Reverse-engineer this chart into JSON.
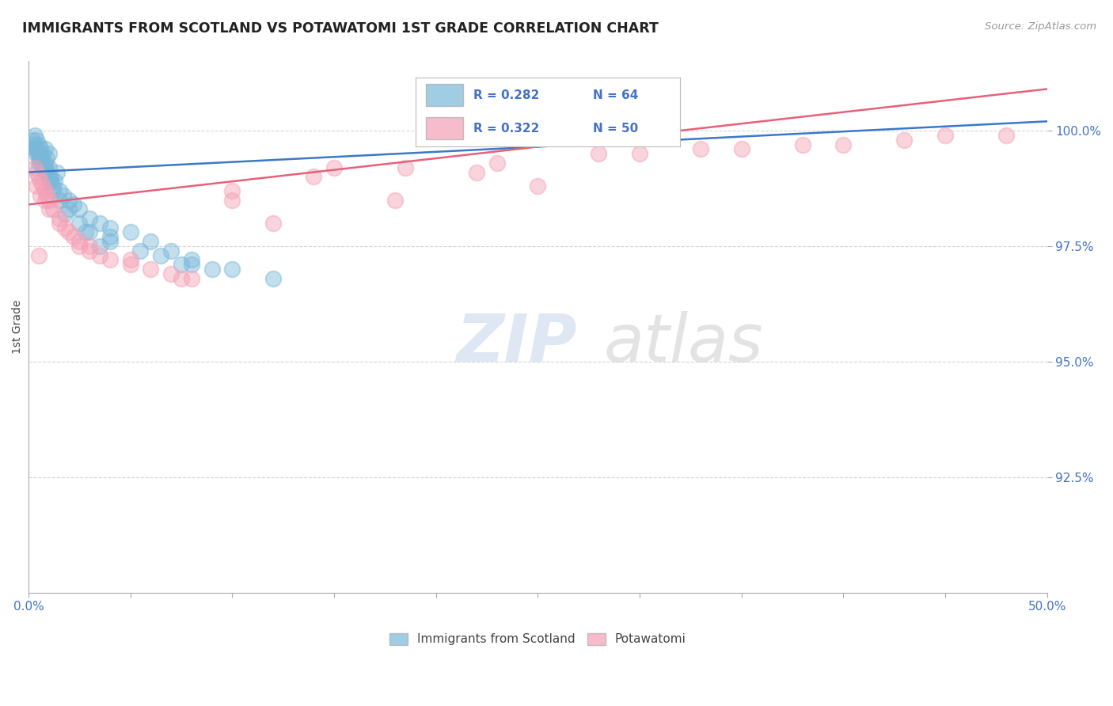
{
  "title": "IMMIGRANTS FROM SCOTLAND VS POTAWATOMI 1ST GRADE CORRELATION CHART",
  "source_text": "Source: ZipAtlas.com",
  "ylabel": "1st Grade",
  "xlim": [
    0.0,
    50.0
  ],
  "ylim": [
    90.0,
    101.5
  ],
  "xticks": [
    0.0,
    5.0,
    10.0,
    15.0,
    20.0,
    25.0,
    30.0,
    35.0,
    40.0,
    45.0,
    50.0
  ],
  "xticklabels": [
    "0.0%",
    "",
    "",
    "",
    "",
    "",
    "",
    "",
    "",
    "",
    "50.0%"
  ],
  "ytick_positions": [
    92.5,
    95.0,
    97.5,
    100.0
  ],
  "ytick_labels": [
    "92.5%",
    "95.0%",
    "97.5%",
    "100.0%"
  ],
  "blue_color": "#7ab8d9",
  "pink_color": "#f4a0b5",
  "blue_line_color": "#3a78c9",
  "pink_line_color": "#e8607a",
  "legend_R1": "R = 0.282",
  "legend_N1": "N = 64",
  "legend_R2": "R = 0.322",
  "legend_N2": "N = 50",
  "blue_x": [
    0.2,
    0.3,
    0.3,
    0.4,
    0.4,
    0.5,
    0.5,
    0.5,
    0.6,
    0.6,
    0.7,
    0.7,
    0.8,
    0.8,
    0.8,
    0.9,
    0.9,
    1.0,
    1.0,
    1.0,
    1.1,
    1.2,
    1.3,
    1.4,
    1.5,
    1.7,
    2.0,
    2.2,
    2.5,
    3.0,
    3.5,
    4.0,
    5.0,
    6.0,
    7.0,
    8.0,
    9.0,
    3.0,
    4.0,
    5.5,
    7.5,
    10.0,
    12.0,
    0.3,
    0.4,
    0.5,
    0.6,
    0.7,
    0.8,
    0.9,
    1.0,
    1.1,
    1.2,
    1.5,
    2.0,
    2.5,
    4.0,
    6.5,
    8.0,
    3.5,
    2.8,
    1.8,
    0.6,
    0.4
  ],
  "blue_y": [
    99.8,
    99.9,
    99.6,
    99.8,
    99.5,
    99.7,
    99.5,
    99.3,
    99.6,
    99.4,
    99.5,
    99.2,
    99.6,
    99.3,
    99.1,
    99.4,
    99.1,
    99.5,
    99.2,
    98.9,
    99.0,
    98.8,
    98.9,
    99.1,
    98.7,
    98.6,
    98.5,
    98.4,
    98.3,
    98.1,
    98.0,
    97.9,
    97.8,
    97.6,
    97.4,
    97.2,
    97.0,
    97.8,
    97.6,
    97.4,
    97.1,
    97.0,
    96.8,
    99.7,
    99.6,
    99.4,
    99.5,
    99.3,
    99.2,
    99.1,
    99.0,
    98.9,
    98.7,
    98.5,
    98.3,
    98.0,
    97.7,
    97.3,
    97.1,
    97.5,
    97.8,
    98.2,
    99.3,
    99.6
  ],
  "pink_x": [
    0.3,
    0.4,
    0.5,
    0.6,
    0.7,
    0.8,
    0.9,
    1.0,
    1.2,
    1.5,
    1.8,
    2.2,
    2.5,
    3.0,
    3.5,
    4.0,
    5.0,
    6.0,
    7.0,
    8.0,
    10.0,
    12.0,
    15.0,
    18.0,
    22.0,
    25.0,
    30.0,
    35.0,
    40.0,
    45.0,
    0.4,
    0.6,
    0.8,
    1.0,
    1.5,
    2.0,
    3.0,
    5.0,
    7.5,
    10.0,
    14.0,
    18.5,
    23.0,
    28.0,
    33.0,
    38.0,
    43.0,
    48.0,
    0.5,
    2.5
  ],
  "pink_y": [
    99.2,
    99.1,
    99.0,
    98.9,
    98.8,
    98.7,
    98.6,
    98.5,
    98.3,
    98.1,
    97.9,
    97.7,
    97.6,
    97.4,
    97.3,
    97.2,
    97.1,
    97.0,
    96.9,
    96.8,
    98.5,
    98.0,
    99.2,
    98.5,
    99.1,
    98.8,
    99.5,
    99.6,
    99.7,
    99.9,
    98.8,
    98.6,
    98.5,
    98.3,
    98.0,
    97.8,
    97.5,
    97.2,
    96.8,
    98.7,
    99.0,
    99.2,
    99.3,
    99.5,
    99.6,
    99.7,
    99.8,
    99.9,
    97.3,
    97.5
  ],
  "blue_trend_x": [
    0,
    50
  ],
  "blue_trend_y": [
    99.1,
    100.2
  ],
  "pink_trend_x": [
    0,
    50
  ],
  "pink_trend_y": [
    98.4,
    100.9
  ]
}
